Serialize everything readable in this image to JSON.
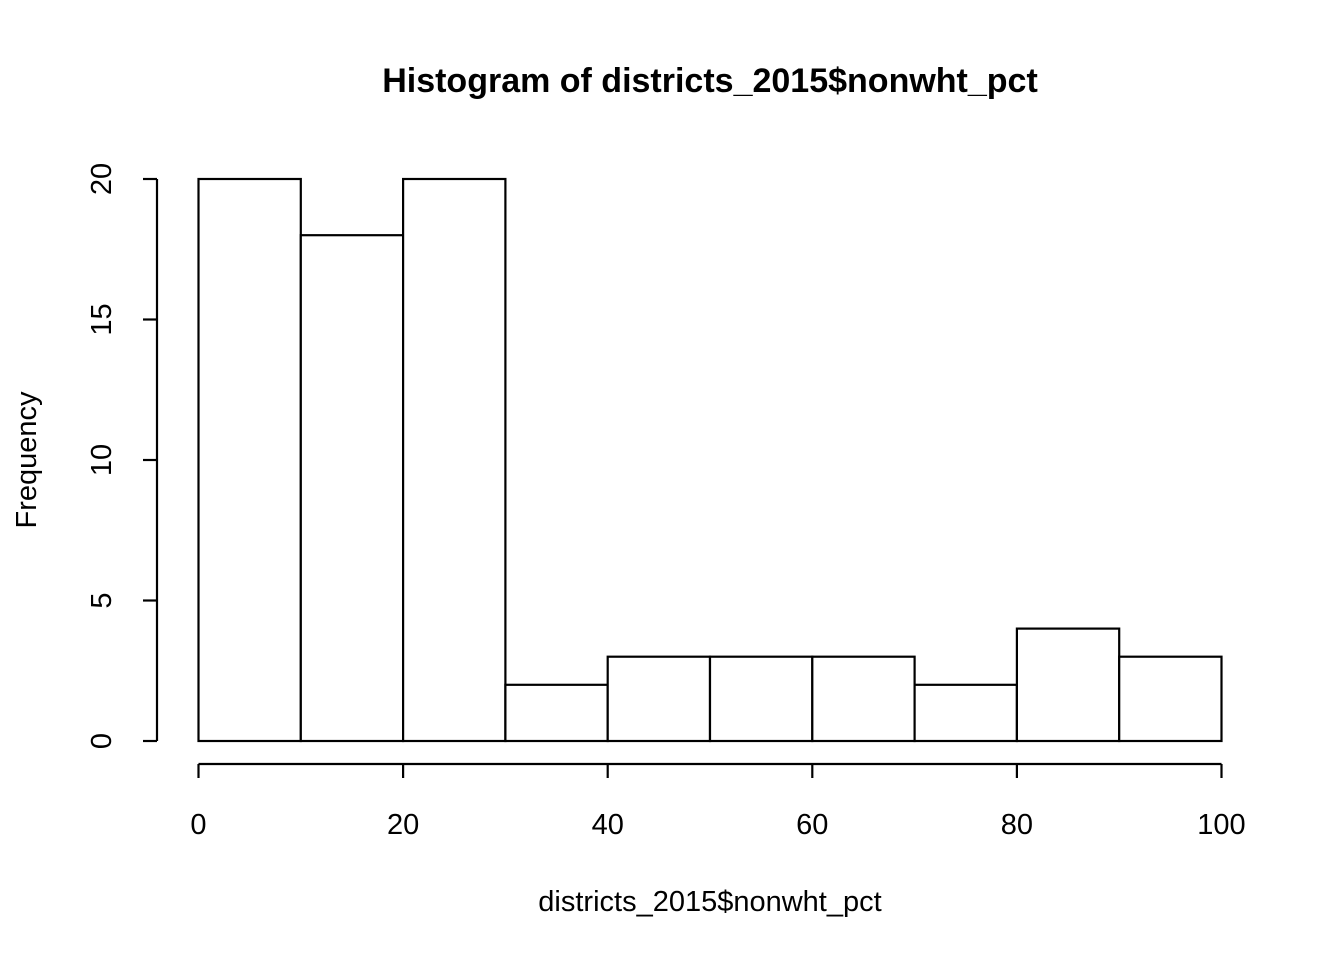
{
  "chart_data": {
    "type": "bar",
    "title": "Histogram of districts_2015$nonwht_pct",
    "xlabel": "districts_2015$nonwht_pct",
    "ylabel": "Frequency",
    "bins": [
      {
        "start": 0,
        "end": 10,
        "count": 20
      },
      {
        "start": 10,
        "end": 20,
        "count": 18
      },
      {
        "start": 20,
        "end": 30,
        "count": 20
      },
      {
        "start": 30,
        "end": 40,
        "count": 2
      },
      {
        "start": 40,
        "end": 50,
        "count": 3
      },
      {
        "start": 50,
        "end": 60,
        "count": 3
      },
      {
        "start": 60,
        "end": 70,
        "count": 3
      },
      {
        "start": 70,
        "end": 80,
        "count": 2
      },
      {
        "start": 80,
        "end": 90,
        "count": 4
      },
      {
        "start": 90,
        "end": 100,
        "count": 3
      }
    ],
    "xlim": [
      0,
      100
    ],
    "ylim": [
      0,
      20
    ],
    "x_ticks": [
      0,
      20,
      40,
      60,
      80,
      100
    ],
    "y_ticks": [
      0,
      5,
      10,
      15,
      20
    ],
    "x_tick_labels": [
      "0",
      "20",
      "40",
      "60",
      "80",
      "100"
    ],
    "y_tick_labels": [
      "0",
      "5",
      "10",
      "15",
      "20"
    ],
    "grid": false,
    "legend": "none",
    "colors": {
      "bar_fill": "#ffffff",
      "bar_stroke": "#000000",
      "axis": "#000000",
      "text": "#000000"
    }
  }
}
